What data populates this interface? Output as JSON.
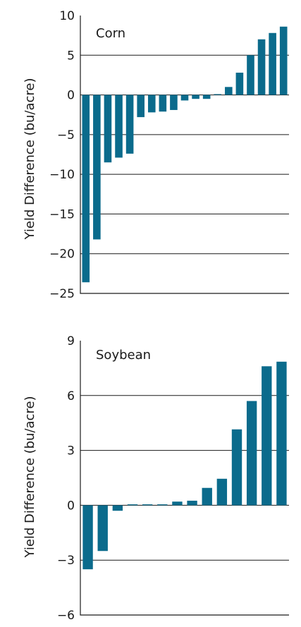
{
  "colors": {
    "bar": "#0b6b8c",
    "grid": "#1a1a1a",
    "text": "#1a1a1a"
  },
  "chart_data": [
    {
      "type": "bar",
      "title": "Corn",
      "xlabel": "",
      "ylabel": "Yield Difference (bu/acre)",
      "ylim": [
        -25,
        10
      ],
      "yticks": [
        10,
        5,
        0,
        -5,
        -10,
        -15,
        -20,
        -25
      ],
      "grid": "horizontal",
      "values": [
        -23.6,
        -18.2,
        -8.5,
        -7.9,
        -7.4,
        -2.8,
        -2.2,
        -2.1,
        -1.9,
        -0.7,
        -0.5,
        -0.5,
        0.1,
        1.0,
        2.8,
        5.0,
        7.0,
        7.8,
        8.6
      ]
    },
    {
      "type": "bar",
      "title": "Soybean",
      "xlabel": "",
      "ylabel": "Yield Difference (bu/acre)",
      "ylim": [
        -6,
        9
      ],
      "yticks": [
        9,
        6,
        3,
        0,
        -3,
        -6
      ],
      "grid": "horizontal",
      "values": [
        -3.5,
        -2.5,
        -0.3,
        0.05,
        0.05,
        0.05,
        0.2,
        0.25,
        0.95,
        1.45,
        4.15,
        5.7,
        7.6,
        7.85
      ]
    }
  ]
}
